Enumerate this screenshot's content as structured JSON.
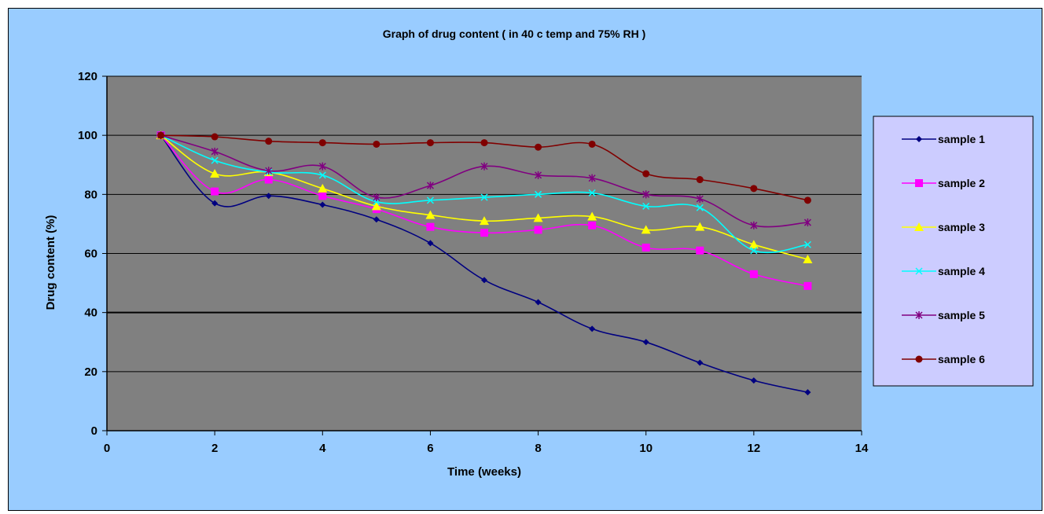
{
  "chart_data": {
    "type": "line",
    "title": "Graph of drug content ( in 40 c temp and 75% RH )",
    "xlabel": "Time (weeks)",
    "ylabel": "Drug content (%)",
    "xlim": [
      0,
      14
    ],
    "ylim": [
      0,
      120
    ],
    "x_ticks": [
      "0",
      "2",
      "4",
      "6",
      "8",
      "10",
      "12",
      "14"
    ],
    "y_ticks": [
      "0",
      "20",
      "40",
      "60",
      "80",
      "100",
      "120"
    ],
    "grid": "horizontal",
    "legend_position": "right",
    "plot_background": "#808080",
    "chart_background": "#99ccff",
    "legend_background": "#ccccff",
    "x": [
      1,
      2,
      3,
      4,
      5,
      6,
      7,
      8,
      9,
      10,
      11,
      12,
      13
    ],
    "series": [
      {
        "name": "sample 1",
        "color": "#000080",
        "marker": "diamond",
        "values": [
          100,
          77,
          79.5,
          76.5,
          71.5,
          63.5,
          51,
          43.5,
          34.5,
          30,
          23,
          17,
          13
        ]
      },
      {
        "name": "sample 2",
        "color": "#ff00ff",
        "marker": "square",
        "values": [
          100,
          81,
          85,
          79.5,
          75,
          69,
          67,
          68,
          69.5,
          62,
          61,
          53,
          49
        ]
      },
      {
        "name": "sample 3",
        "color": "#ffff00",
        "marker": "triangle",
        "values": [
          100,
          87,
          87.5,
          82,
          76,
          73,
          71,
          72,
          72.5,
          68,
          69,
          63,
          58
        ]
      },
      {
        "name": "sample 4",
        "color": "#00ffff",
        "marker": "x",
        "values": [
          100,
          91.5,
          87.5,
          86.5,
          77.5,
          78,
          79,
          80,
          80.5,
          76,
          75.5,
          61,
          63
        ]
      },
      {
        "name": "sample 5",
        "color": "#800080",
        "marker": "star",
        "values": [
          100,
          94.5,
          88,
          89.5,
          79,
          83,
          89.5,
          86.5,
          85.5,
          80,
          78.5,
          69.5,
          70.5
        ]
      },
      {
        "name": "sample 6",
        "color": "#800000",
        "marker": "circle",
        "values": [
          100,
          99.5,
          98,
          97.5,
          97,
          97.5,
          97.5,
          96,
          97,
          87,
          85,
          82,
          78
        ]
      }
    ]
  }
}
